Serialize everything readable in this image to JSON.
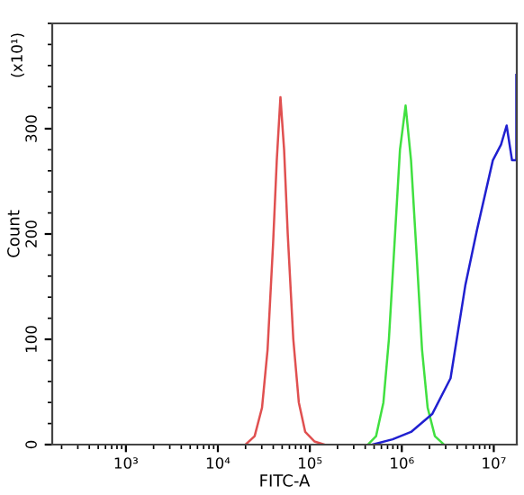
{
  "chart_data": {
    "type": "line",
    "xlabel": "FITC-A",
    "ylabel": "Count",
    "annotations": [
      "(x10¹)"
    ],
    "log": "x",
    "grid": false,
    "legend": false,
    "xlim": [
      158,
      17800000
    ],
    "xticks": [
      {
        "value": 1000,
        "label": "10³"
      },
      {
        "value": 10000,
        "label": "10⁴"
      },
      {
        "value": 100000,
        "label": "10⁵"
      },
      {
        "value": 1000000,
        "label": "10⁶"
      },
      {
        "value": 10000000,
        "label": "10⁷"
      }
    ],
    "ylim": [
      0,
      400
    ],
    "yticks": [
      0,
      100,
      200,
      300
    ],
    "series": [
      {
        "color": "#e05050",
        "x": [
          20000,
          25100,
          30200,
          34700,
          39800,
          43700,
          47900,
          52500,
          57500,
          66100,
          75900,
          89100,
          112000,
          145000
        ],
        "values": [
          0,
          8,
          35,
          90,
          190,
          270,
          330,
          280,
          200,
          100,
          40,
          12,
          3,
          0
        ]
      },
      {
        "color": "#40e040",
        "x": [
          427000,
          525000,
          631000,
          724000,
          832000,
          955000,
          1100000,
          1260000,
          1450000,
          1660000,
          1910000,
          2290000,
          2880000
        ],
        "values": [
          0,
          8,
          40,
          100,
          190,
          280,
          322,
          270,
          180,
          90,
          35,
          8,
          0
        ]
      },
      {
        "color": "#2020d0",
        "x": [
          479000,
          794000,
          1260000,
          2140000,
          3390000,
          4900000,
          6610000,
          9770000,
          12000000,
          13800000,
          15800000,
          17600000,
          17600000
        ],
        "values": [
          0,
          5,
          12,
          29,
          63,
          151,
          205,
          270,
          285,
          303,
          270,
          270,
          351
        ]
      }
    ]
  }
}
